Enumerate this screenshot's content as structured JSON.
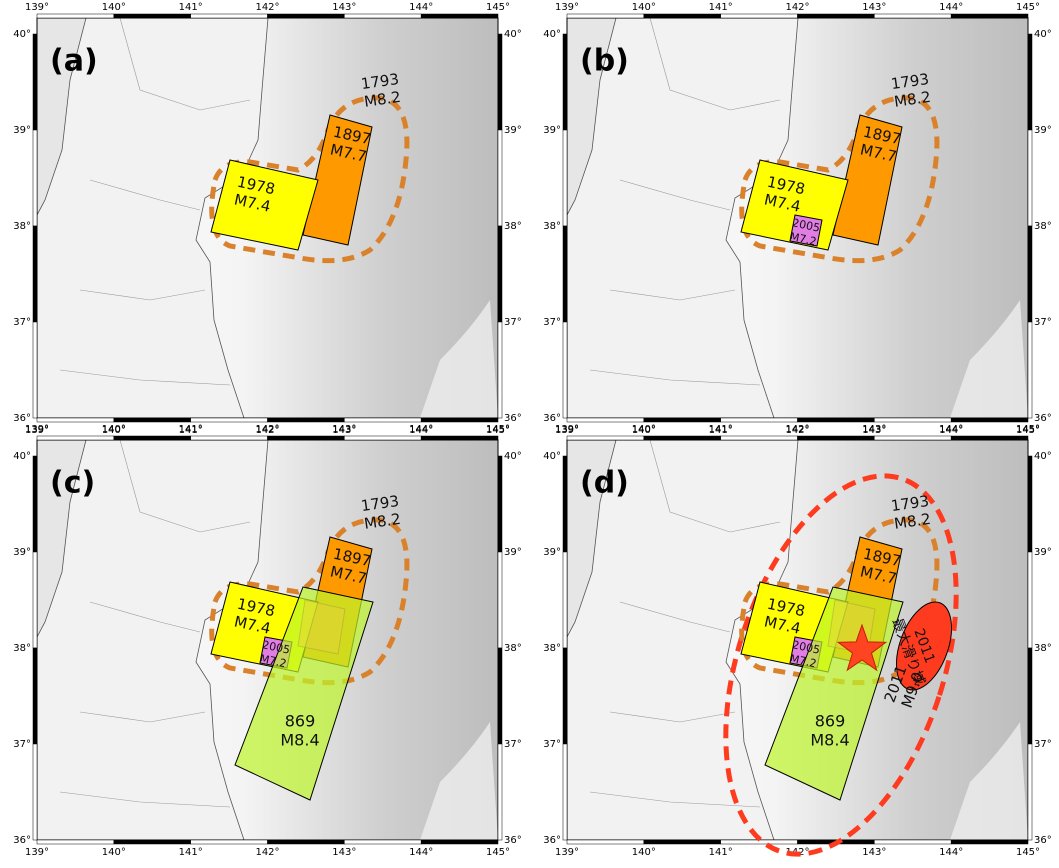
{
  "axes": {
    "longitudes": [
      "139°",
      "140°",
      "141°",
      "142°",
      "143°",
      "144°",
      "145°"
    ],
    "latitudes": [
      "40°",
      "39°",
      "38°",
      "37°",
      "36°"
    ]
  },
  "panels": [
    {
      "label": "(a)",
      "regions": [
        {
          "lines": [
            "1793",
            "M8.2"
          ]
        },
        {
          "lines": [
            "1897",
            "M7.7"
          ]
        },
        {
          "lines": [
            "1978",
            "M7.4"
          ]
        }
      ]
    },
    {
      "label": "(b)",
      "regions": [
        {
          "lines": [
            "1793",
            "M8.2"
          ]
        },
        {
          "lines": [
            "1897",
            "M7.7"
          ]
        },
        {
          "lines": [
            "1978",
            "M7.4"
          ]
        },
        {
          "lines": [
            "2005",
            "M7.2"
          ]
        }
      ]
    },
    {
      "label": "(c)",
      "regions": [
        {
          "lines": [
            "1793",
            "M8.2"
          ]
        },
        {
          "lines": [
            "1897",
            "M7.7"
          ]
        },
        {
          "lines": [
            "1978",
            "M7.4"
          ]
        },
        {
          "lines": [
            "2005",
            "M7.2"
          ]
        },
        {
          "lines": [
            "869",
            "M8.4"
          ]
        }
      ]
    },
    {
      "label": "(d)",
      "regions": [
        {
          "lines": [
            "1793",
            "M8.2"
          ]
        },
        {
          "lines": [
            "1897",
            "M7.7"
          ]
        },
        {
          "lines": [
            "1978",
            "M7.4"
          ]
        },
        {
          "lines": [
            "2005",
            "M7.2"
          ]
        },
        {
          "lines": [
            "869",
            "M8.4"
          ]
        },
        {
          "lines": [
            "2011",
            "M9.0"
          ]
        },
        {
          "lines": [
            "2011",
            "最大滑り域"
          ]
        }
      ]
    }
  ]
}
